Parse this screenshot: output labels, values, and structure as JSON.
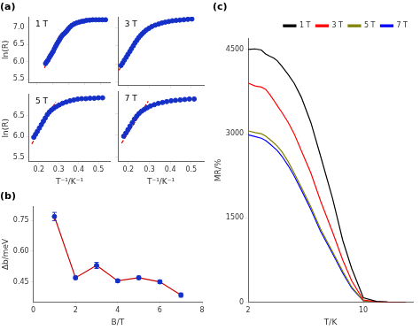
{
  "chart_data": [
    {
      "type": "scatter",
      "title": "(a)",
      "annotations": [
        "1 T"
      ],
      "y_label": "ln(R)",
      "series": [
        {
          "type": "scatter",
          "marker": "o",
          "color": "#1530c8",
          "x": [
            0.155,
            0.162,
            0.17,
            0.178,
            0.186,
            0.194,
            0.202,
            0.21,
            0.218,
            0.226,
            0.234,
            0.242,
            0.25,
            0.258,
            0.266,
            0.274,
            0.282,
            0.29,
            0.298,
            0.308,
            0.32,
            0.335,
            0.35,
            0.365,
            0.38,
            0.395,
            0.41,
            0.43,
            0.45,
            0.47,
            0.49,
            0.51,
            0.53
          ],
          "values": [
            5.95,
            6.0,
            6.05,
            6.12,
            6.18,
            6.24,
            6.3,
            6.38,
            6.45,
            6.52,
            6.58,
            6.64,
            6.7,
            6.76,
            6.8,
            6.83,
            6.87,
            6.91,
            6.96,
            7.01,
            7.06,
            7.1,
            7.13,
            7.15,
            7.17,
            7.18,
            7.2,
            7.21,
            7.22,
            7.22,
            7.22,
            7.22,
            7.22
          ]
        },
        {
          "type": "line",
          "line_style": "dashed",
          "color": "#cc0000",
          "x": [
            0.148,
            0.245
          ],
          "values": [
            5.82,
            6.8
          ]
        }
      ],
      "xlim": [
        0.05,
        0.56
      ],
      "ylim": [
        5.4,
        7.3
      ],
      "xticks": [
        0.1,
        0.2,
        0.3,
        0.4,
        0.5
      ],
      "yticks": [
        5.5,
        {
          "value": 6.0,
          "label": "6.0"
        },
        6.5,
        {
          "value": 7.0,
          "label": "7.0"
        }
      ],
      "grid": false,
      "tick_labels": "y"
    },
    {
      "type": "scatter",
      "annotations": [
        "3 T"
      ],
      "series": [
        {
          "type": "scatter",
          "marker": "o",
          "color": "#1530c8",
          "x": [
            0.165,
            0.173,
            0.181,
            0.19,
            0.198,
            0.207,
            0.215,
            0.224,
            0.232,
            0.241,
            0.249,
            0.258,
            0.266,
            0.275,
            0.285,
            0.298,
            0.312,
            0.328,
            0.344,
            0.36,
            0.376,
            0.393,
            0.41,
            0.428,
            0.446,
            0.465,
            0.484,
            0.503
          ],
          "values": [
            5.95,
            6.02,
            6.1,
            6.18,
            6.26,
            6.34,
            6.42,
            6.5,
            6.58,
            6.65,
            6.72,
            6.78,
            6.83,
            6.88,
            6.93,
            6.98,
            7.03,
            7.07,
            7.1,
            7.13,
            7.15,
            7.17,
            7.19,
            7.2,
            7.21,
            7.22,
            7.23,
            7.24
          ]
        },
        {
          "type": "line",
          "line_style": "dashed",
          "color": "#cc0000",
          "x": [
            0.155,
            0.265
          ],
          "values": [
            5.82,
            6.85
          ]
        }
      ],
      "xlim": [
        0.15,
        0.56
      ],
      "ylim": [
        5.4,
        7.3
      ],
      "xticks": [
        0.2,
        0.3,
        0.4,
        0.5
      ],
      "yticks": [
        5.5,
        {
          "value": 6.0,
          "label": "6.0"
        },
        6.5,
        {
          "value": 7.0,
          "label": "7.0"
        }
      ],
      "grid": false,
      "tick_labels": false
    },
    {
      "type": "scatter",
      "annotations": [
        "5 T"
      ],
      "x_label": "T⁻¹/K⁻¹",
      "y_label": "ln(R)",
      "series": [
        {
          "type": "scatter",
          "marker": "o",
          "color": "#1530c8",
          "x": [
            0.175,
            0.184,
            0.193,
            0.203,
            0.213,
            0.223,
            0.233,
            0.243,
            0.253,
            0.264,
            0.275,
            0.288,
            0.303,
            0.32,
            0.338,
            0.357,
            0.376,
            0.396,
            0.416,
            0.437,
            0.458,
            0.479,
            0.5,
            0.521
          ],
          "values": [
            5.98,
            6.05,
            6.12,
            6.2,
            6.28,
            6.36,
            6.44,
            6.52,
            6.58,
            6.63,
            6.67,
            6.71,
            6.75,
            6.79,
            6.82,
            6.85,
            6.87,
            6.89,
            6.9,
            6.9,
            6.91,
            6.91,
            6.92,
            6.92
          ]
        },
        {
          "type": "line",
          "line_style": "dashed",
          "color": "#cc0000",
          "x": [
            0.165,
            0.285
          ],
          "values": [
            5.82,
            6.82
          ]
        }
      ],
      "xlim": [
        0.15,
        0.56
      ],
      "ylim": [
        5.4,
        7.0
      ],
      "xticks": [
        0.2,
        0.3,
        0.4,
        0.5
      ],
      "yticks": [
        5.5,
        {
          "value": 6.0,
          "label": "6.0"
        },
        6.5
      ],
      "grid": false
    },
    {
      "type": "scatter",
      "annotations": [
        "7 T"
      ],
      "x_label": "T⁻¹/K⁻¹",
      "series": [
        {
          "type": "scatter",
          "marker": "o",
          "color": "#1530c8",
          "x": [
            0.178,
            0.188,
            0.198,
            0.208,
            0.219,
            0.229,
            0.24,
            0.251,
            0.263,
            0.276,
            0.29,
            0.306,
            0.324,
            0.343,
            0.363,
            0.383,
            0.404,
            0.425,
            0.447,
            0.469,
            0.491,
            0.514
          ],
          "values": [
            5.98,
            6.05,
            6.13,
            6.21,
            6.29,
            6.37,
            6.44,
            6.5,
            6.55,
            6.59,
            6.63,
            6.67,
            6.7,
            6.73,
            6.75,
            6.77,
            6.79,
            6.8,
            6.81,
            6.82,
            6.83,
            6.83
          ]
        },
        {
          "type": "line",
          "line_style": "dashed",
          "color": "#cc0000",
          "x": [
            0.168,
            0.295
          ],
          "values": [
            5.82,
            6.78
          ]
        }
      ],
      "xlim": [
        0.15,
        0.56
      ],
      "ylim": [
        5.4,
        7.0
      ],
      "xticks": [
        0.2,
        0.3,
        0.4,
        0.5
      ],
      "yticks": [
        5.5,
        {
          "value": 6.0,
          "label": "6.0"
        },
        6.5
      ],
      "grid": false,
      "tick_labels": "x"
    },
    {
      "type": "line",
      "title": "(b)",
      "x_label": "B/T",
      "y_label": "Δb/meV",
      "x": [
        1,
        2,
        3,
        4,
        5,
        6,
        7
      ],
      "series": [
        {
          "type": "line",
          "color": "#cc0000",
          "values": [
            0.77,
            0.47,
            0.53,
            0.455,
            0.47,
            0.45,
            0.385
          ]
        },
        {
          "type": "scatter",
          "marker": "o",
          "color": "#1530c8",
          "values": [
            0.77,
            0.47,
            0.53,
            0.455,
            0.47,
            0.45,
            0.385
          ],
          "errors": [
            0.02,
            0.008,
            0.015,
            0.008,
            0.008,
            0.008,
            0.01
          ]
        }
      ],
      "xlim": [
        0,
        8
      ],
      "ylim": [
        0.35,
        0.82
      ],
      "xticks": [
        0,
        2,
        4,
        6,
        8
      ],
      "yticks": [
        0.45,
        {
          "value": 0.6,
          "label": "0.60"
        },
        0.75
      ],
      "grid": false
    },
    {
      "type": "line",
      "title": "(c)",
      "x_label": "T/K",
      "y_label": "MR/%",
      "log": "x",
      "x": [
        2.0,
        2.2,
        2.4,
        2.55,
        2.7,
        2.85,
        3.0,
        3.2,
        3.5,
        3.8,
        4.2,
        4.8,
        5.5,
        6.5,
        7.5,
        8.5,
        10.0,
        12.0,
        14.0,
        18.0
      ],
      "series": [
        {
          "name": "1 T",
          "color": "black",
          "values": [
            4500,
            4510,
            4490,
            4420,
            4380,
            4350,
            4300,
            4200,
            4050,
            3900,
            3650,
            3200,
            2600,
            1850,
            1100,
            600,
            80,
            15,
            5,
            0
          ]
        },
        {
          "name": "3 T",
          "color": "red",
          "values": [
            3900,
            3850,
            3830,
            3790,
            3700,
            3600,
            3500,
            3380,
            3200,
            3000,
            2700,
            2300,
            1800,
            1250,
            750,
            380,
            40,
            8,
            2,
            0
          ]
        },
        {
          "name": "5 T",
          "color": "#808000",
          "values": [
            3050,
            3020,
            3000,
            2960,
            2900,
            2840,
            2780,
            2680,
            2500,
            2300,
            2050,
            1700,
            1300,
            900,
            550,
            270,
            28,
            5,
            1,
            0
          ]
        },
        {
          "name": "7 T",
          "color": "blue",
          "values": [
            2980,
            2950,
            2920,
            2880,
            2820,
            2760,
            2700,
            2600,
            2430,
            2250,
            2000,
            1650,
            1260,
            870,
            520,
            250,
            25,
            4,
            0,
            0
          ]
        }
      ],
      "xlim": [
        2.0,
        20.0
      ],
      "ylim": [
        0,
        4700
      ],
      "xticks": [
        2,
        10
      ],
      "yticks": [
        0,
        1500,
        3000,
        4500
      ],
      "grid": false,
      "legend": "upper right"
    }
  ]
}
